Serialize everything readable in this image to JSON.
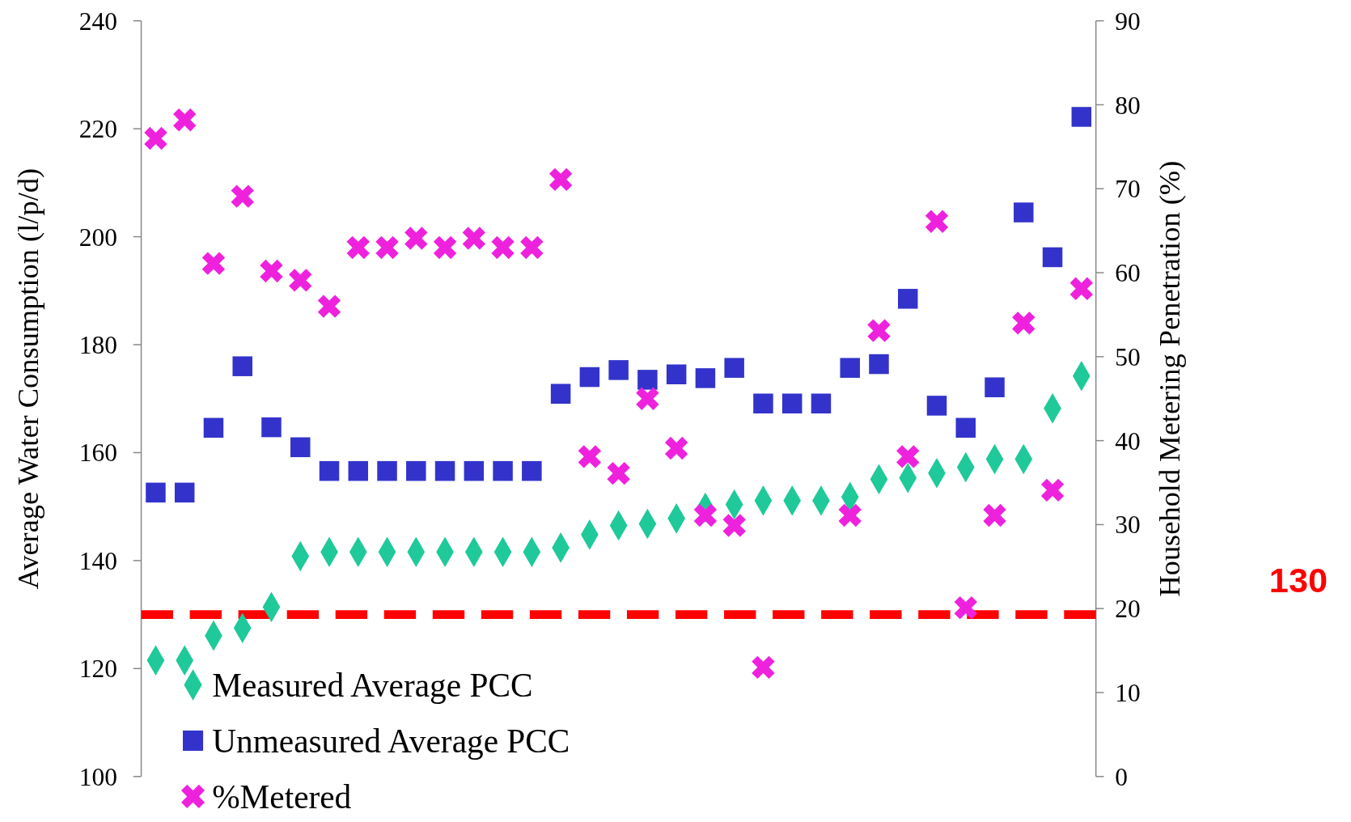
{
  "chart_data": {
    "type": "scatter",
    "ylabel": "Average Water Consumption (l/p/d)",
    "y2label": "Household Metering Penetration (%)",
    "categories": [
      null,
      null,
      null,
      null,
      null,
      null,
      null,
      null,
      null,
      null,
      null,
      null,
      null,
      null,
      null,
      null,
      null,
      null,
      null,
      null,
      null,
      null,
      null,
      null,
      null,
      null,
      null,
      null,
      null,
      null,
      null,
      null,
      null
    ],
    "series": [
      {
        "name": "Measured Average PCC",
        "color": "#1fc99a",
        "marker": "diamond",
        "values": [
          121.5,
          121.5,
          126.1,
          127.5,
          131.4,
          140.8,
          141.6,
          141.6,
          141.6,
          141.6,
          141.6,
          141.6,
          141.6,
          141.6,
          142.4,
          144.8,
          146.5,
          146.8,
          147.8,
          149.8,
          150.4,
          151.1,
          151.1,
          151.1,
          151.8,
          155.1,
          155.3,
          156.2,
          157.3,
          158.8,
          158.8,
          168.2,
          174.2
        ]
      },
      {
        "name": "Unmeasured Average PCC",
        "color": "#3333cc",
        "marker": "square",
        "values": [
          152.6,
          152.6,
          164.6,
          176.0,
          164.7,
          161.0,
          156.6,
          156.6,
          156.6,
          156.6,
          156.6,
          156.6,
          156.6,
          156.6,
          170.9,
          174.0,
          175.3,
          173.5,
          174.5,
          173.8,
          175.7,
          169.1,
          169.1,
          169.1,
          175.7,
          176.4,
          188.5,
          168.7,
          164.6,
          172.1,
          204.5,
          196.2,
          222.2
        ]
      },
      {
        "name": "%Metered",
        "color": "#ee22dd",
        "marker": "cross",
        "axis": "y2",
        "values": [
          76.0,
          78.2,
          61.1,
          69.1,
          60.2,
          59.1,
          56.0,
          63.0,
          63.0,
          64.1,
          63.0,
          64.1,
          63.0,
          63.0,
          71.1,
          38.1,
          36.1,
          45.0,
          39.1,
          31.1,
          29.9,
          13.0,
          null,
          null,
          31.1,
          53.1,
          38.1,
          66.1,
          20.1,
          31.1,
          54.0,
          34.1,
          58.1
        ]
      }
    ],
    "ylim": [
      100,
      240
    ],
    "yticks": [
      100,
      120,
      140,
      160,
      180,
      200,
      220,
      240
    ],
    "y2lim": [
      0,
      90
    ],
    "y2ticks": [
      0,
      10,
      20,
      30,
      40,
      50,
      60,
      70,
      80,
      90
    ],
    "ref_lines": [
      {
        "axis": "y",
        "value": 130,
        "label": "130",
        "color": "#ff0000",
        "line_style": "dashed"
      }
    ],
    "legend": "bottom left",
    "grid": false
  }
}
